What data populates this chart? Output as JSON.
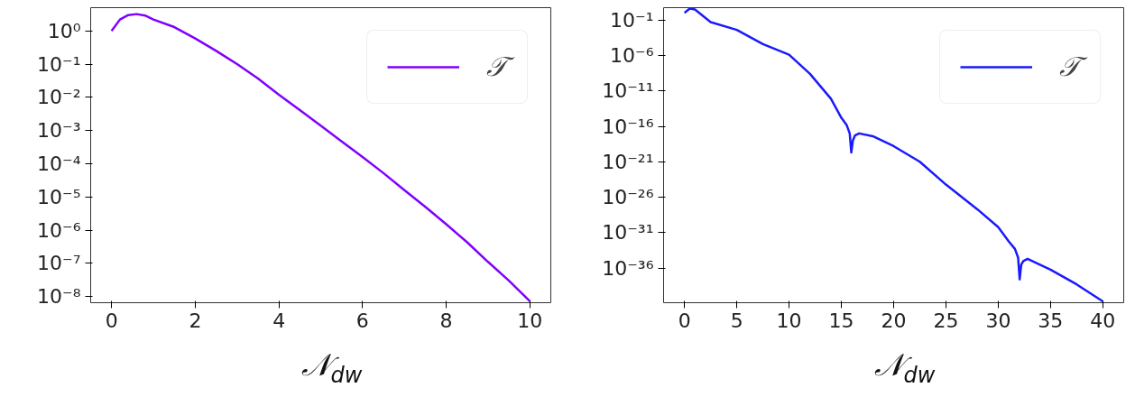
{
  "chart_data": [
    {
      "type": "line",
      "xlabel": "𝒩$_{dw}$",
      "log": "y",
      "grid": false,
      "legend": "top right",
      "xlim": [
        -0.5,
        10.5
      ],
      "ylim": [
        6.5e-09,
        5.0
      ],
      "xticks": [
        0,
        2,
        4,
        6,
        8,
        10
      ],
      "yticks": [
        {
          "value": 1,
          "label": "10⁰"
        },
        {
          "value": 0.1,
          "label": "10⁻¹"
        },
        {
          "value": 0.01,
          "label": "10⁻²"
        },
        {
          "value": 0.001,
          "label": "10⁻³"
        },
        {
          "value": 0.0001,
          "label": "10⁻⁴"
        },
        {
          "value": 1e-05,
          "label": "10⁻⁵"
        },
        {
          "value": 1e-06,
          "label": "10⁻⁶"
        },
        {
          "value": 1e-07,
          "label": "10⁻⁷"
        },
        {
          "value": 1e-08,
          "label": "10⁻⁸"
        }
      ],
      "series": [
        {
          "name": "𝒯",
          "color": "#7f00ff",
          "x": [
            0,
            0.2,
            0.4,
            0.6,
            0.8,
            1,
            1.5,
            2,
            2.5,
            3,
            3.5,
            4,
            4.5,
            5,
            5.5,
            6,
            6.5,
            7,
            7.5,
            8,
            8.5,
            9,
            9.5,
            10
          ],
          "values": [
            1,
            2.2,
            3.0,
            3.2,
            2.9,
            2.2,
            1.3,
            0.59,
            0.25,
            0.1,
            0.037,
            0.012,
            0.0041,
            0.0014,
            0.00047,
            0.00016,
            5.2e-05,
            1.6e-05,
            5e-06,
            1.5e-06,
            4.3e-07,
            1.1e-07,
            3e-08,
            7.2e-09
          ]
        }
      ]
    },
    {
      "type": "line",
      "xlabel": "𝒩$_{dw}$",
      "log": "y",
      "grid": false,
      "legend": "top right",
      "xlim": [
        -2,
        42
      ],
      "ylim": [
        1.3e-41,
        5.5
      ],
      "xticks": [
        0,
        5,
        10,
        15,
        20,
        25,
        30,
        35,
        40
      ],
      "yticks": [
        {
          "value": 0.1,
          "label": "10⁻¹"
        },
        {
          "value": 1e-06,
          "label": "10⁻⁶"
        },
        {
          "value": 1e-11,
          "label": "10⁻¹¹"
        },
        {
          "value": 1e-16,
          "label": "10⁻¹⁶"
        },
        {
          "value": 1e-21,
          "label": "10⁻²¹"
        },
        {
          "value": 1e-26,
          "label": "10⁻²⁶"
        },
        {
          "value": 1e-31,
          "label": "10⁻³¹"
        },
        {
          "value": 1e-36,
          "label": "10⁻³⁶"
        }
      ],
      "series": [
        {
          "name": "𝒯",
          "color": "#1a1aff",
          "x": [
            0,
            0.5,
            1,
            2.5,
            5,
            7.5,
            10,
            12,
            14,
            15,
            15.5,
            15.8,
            15.95,
            16.1,
            16.3,
            16.7,
            18,
            20,
            22.5,
            25,
            28,
            30,
            31,
            31.6,
            31.9,
            32.05,
            32.2,
            32.4,
            32.8,
            35,
            37.5,
            40
          ],
          "values": [
            1,
            4,
            3,
            0.05,
            0.004,
            4e-05,
            1.3e-06,
            2.5e-09,
            8e-13,
            1.6e-15,
            1.6e-16,
            1e-17,
            2e-20,
            1e-18,
            5e-18,
            1e-17,
            4e-18,
            1.6e-19,
            1e-21,
            6e-25,
            2e-28,
            6e-31,
            6e-33,
            5e-34,
            3e-35,
            2.5e-38,
            3e-36,
            1e-35,
            2e-35,
            6e-37,
            5e-39,
            2e-41
          ]
        }
      ]
    }
  ]
}
